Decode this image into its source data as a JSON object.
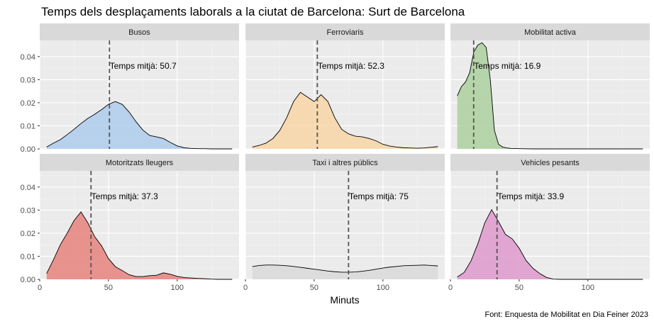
{
  "chart_data": {
    "type": "density",
    "title": "Temps dels desplaçaments laborals a la ciutat de Barcelona:  Surt de Barcelona",
    "xlabel": "Minuts",
    "ylabel": "",
    "caption": "Font: Enquesta de Mobilitat en Dia Feiner 2023",
    "xlim": [
      0,
      145
    ],
    "ylim": [
      0,
      0.047
    ],
    "x_ticks": [
      0,
      50,
      100
    ],
    "y_ticks": [
      0.0,
      0.01,
      0.02,
      0.03,
      0.04
    ],
    "y_tick_labels": [
      "0.00",
      "0.01",
      "0.02",
      "0.03",
      "0.04"
    ],
    "annotation_prefix": "Temps mitjà:",
    "panels": [
      {
        "name": "Busos",
        "mean": 50.7,
        "mean_label": "50.7",
        "fill": "#aecbec",
        "x": [
          5,
          10,
          15,
          20,
          25,
          30,
          35,
          40,
          45,
          50,
          55,
          60,
          65,
          70,
          75,
          80,
          85,
          90,
          95,
          100,
          105,
          110,
          115,
          120,
          125,
          130,
          135,
          140
        ],
        "y": [
          0.0008,
          0.0025,
          0.004,
          0.0062,
          0.0085,
          0.011,
          0.0132,
          0.015,
          0.017,
          0.0193,
          0.0205,
          0.0193,
          0.016,
          0.0118,
          0.0082,
          0.0058,
          0.0052,
          0.0045,
          0.0028,
          0.0013,
          0.0005,
          0.0002,
          0.0001,
          0.0001,
          0.0,
          0.0,
          0.0,
          0.0
        ]
      },
      {
        "name": "Ferroviaris",
        "mean": 52.3,
        "mean_label": "52.3",
        "fill": "#f8d6a6",
        "x": [
          5,
          10,
          15,
          20,
          25,
          30,
          35,
          40,
          45,
          50,
          55,
          60,
          65,
          70,
          75,
          80,
          85,
          90,
          95,
          100,
          105,
          110,
          115,
          120,
          125,
          130,
          135,
          140
        ],
        "y": [
          0.0008,
          0.0015,
          0.0025,
          0.0045,
          0.008,
          0.0135,
          0.0205,
          0.0245,
          0.0225,
          0.0205,
          0.0235,
          0.0205,
          0.0135,
          0.0085,
          0.0065,
          0.0055,
          0.0052,
          0.0045,
          0.0035,
          0.002,
          0.0012,
          0.0008,
          0.0005,
          0.0004,
          0.0003,
          0.0004,
          0.0007,
          0.001
        ]
      },
      {
        "name": "Mobilitat activa",
        "mean": 16.9,
        "mean_label": "16.9",
        "fill": "#acd09e",
        "x": [
          5,
          8,
          11,
          14,
          17,
          20,
          23,
          26,
          29,
          32,
          35,
          38,
          41,
          44,
          50,
          60,
          80,
          100,
          120,
          140
        ],
        "y": [
          0.023,
          0.027,
          0.029,
          0.033,
          0.042,
          0.045,
          0.046,
          0.044,
          0.03,
          0.008,
          0.002,
          0.0008,
          0.0004,
          0.0002,
          0.0001,
          0.0,
          0.0,
          0.0,
          0.0,
          0.0
        ]
      },
      {
        "name": "Motoritzats lleugers",
        "mean": 37.3,
        "mean_label": "37.3",
        "fill": "#e8827c",
        "x": [
          5,
          10,
          15,
          20,
          25,
          30,
          35,
          40,
          45,
          50,
          55,
          60,
          65,
          70,
          75,
          80,
          85,
          90,
          95,
          100,
          105,
          110,
          115,
          120,
          125,
          130,
          135,
          140
        ],
        "y": [
          0.0025,
          0.0085,
          0.015,
          0.02,
          0.0255,
          0.0292,
          0.0245,
          0.0185,
          0.0145,
          0.009,
          0.0055,
          0.0038,
          0.002,
          0.0012,
          0.0012,
          0.0016,
          0.0018,
          0.0028,
          0.0022,
          0.0013,
          0.0008,
          0.0006,
          0.0004,
          0.0003,
          0.0001,
          0.0,
          0.0,
          0.0
        ]
      },
      {
        "name": "Taxi i altres públics",
        "mean": 75,
        "mean_label": "75",
        "fill": "#d9d9d9",
        "x": [
          5,
          10,
          15,
          20,
          25,
          30,
          35,
          40,
          45,
          50,
          55,
          60,
          65,
          70,
          75,
          80,
          85,
          90,
          95,
          100,
          105,
          110,
          115,
          120,
          125,
          130,
          135,
          140
        ],
        "y": [
          0.0055,
          0.006,
          0.0062,
          0.0062,
          0.0061,
          0.0059,
          0.0056,
          0.0052,
          0.0048,
          0.0044,
          0.004,
          0.0036,
          0.0033,
          0.0031,
          0.0031,
          0.0032,
          0.0035,
          0.0039,
          0.0044,
          0.0049,
          0.0053,
          0.0056,
          0.0059,
          0.006,
          0.0061,
          0.0062,
          0.006,
          0.0058
        ]
      },
      {
        "name": "Vehicles pesants",
        "mean": 33.9,
        "mean_label": "33.9",
        "fill": "#df99cc",
        "x": [
          5,
          10,
          15,
          20,
          25,
          30,
          35,
          40,
          45,
          50,
          55,
          60,
          65,
          70,
          75,
          80,
          85,
          90,
          95,
          100,
          105,
          110,
          115,
          120,
          125,
          130,
          135,
          140
        ],
        "y": [
          0.001,
          0.003,
          0.008,
          0.0155,
          0.0245,
          0.0302,
          0.025,
          0.0195,
          0.0175,
          0.0135,
          0.0082,
          0.0048,
          0.0025,
          0.0008,
          0.0001,
          0.0,
          0.0,
          0.0,
          0.0,
          0.0,
          0.0,
          0.0,
          0.0,
          0.0,
          0.0,
          0.0,
          0.0,
          0.0
        ]
      }
    ]
  }
}
